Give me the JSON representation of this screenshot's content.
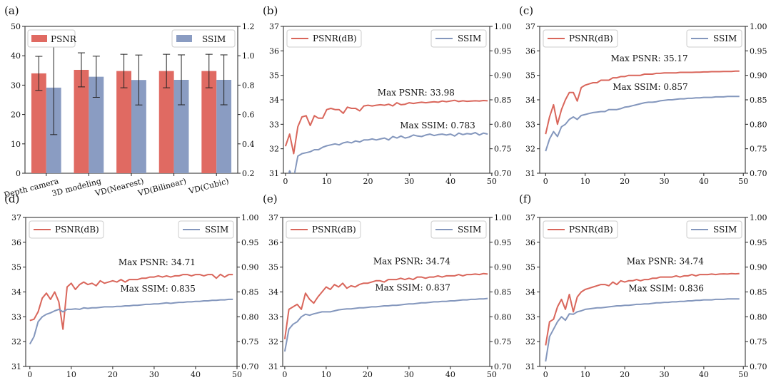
{
  "colors": {
    "psnr": "#d9665b",
    "ssim": "#8497bd",
    "bar_psnr": "#e06a62",
    "bar_ssim": "#8a9cc2"
  },
  "chart_data": [
    {
      "panel": "(a)",
      "type": "bar",
      "categories": [
        "Depth camera",
        "3D modeling",
        "VD(Nearest)",
        "VD(Bilinear)",
        "VD(Cubic)"
      ],
      "series": [
        {
          "name": "PSNR",
          "axis": "left",
          "values": [
            34.0,
            35.2,
            34.8,
            34.8,
            34.8
          ],
          "error": [
            5.8,
            5.8,
            5.7,
            5.7,
            5.7
          ]
        },
        {
          "name": "SSIM",
          "axis": "right",
          "values": [
            0.783,
            0.857,
            0.835,
            0.836,
            0.836
          ],
          "error": [
            0.32,
            0.14,
            0.17,
            0.17,
            0.17
          ]
        }
      ],
      "ylim_left": [
        0,
        50
      ],
      "yticks_left": [
        "0",
        "10",
        "20",
        "30",
        "40",
        "50"
      ],
      "ylim_right": [
        0.2,
        1.2
      ],
      "yticks_right": [
        "0.2",
        "0.4",
        "0.6",
        "0.8",
        "1.0",
        "1.2"
      ],
      "legend": [
        "top-left",
        "top-right"
      ]
    },
    {
      "panel": "(b)",
      "type": "line",
      "x_range": [
        0,
        49
      ],
      "xlim": [
        -0.5,
        49.5
      ],
      "xticks": [
        "0",
        "10",
        "20",
        "30",
        "40",
        "50"
      ],
      "ylim_left": [
        31,
        37
      ],
      "yticks_left": [
        "31",
        "32",
        "33",
        "34",
        "35",
        "36",
        "37"
      ],
      "ylim_right": [
        0.7,
        1.0
      ],
      "yticks_right": [
        "0.70",
        "0.75",
        "0.80",
        "0.85",
        "0.90",
        "0.95",
        "1.00"
      ],
      "series": [
        {
          "name": "PSNR(dB)",
          "axis": "left",
          "values": [
            32.1,
            32.6,
            31.8,
            32.9,
            33.3,
            33.35,
            32.95,
            33.35,
            33.25,
            33.25,
            33.6,
            33.65,
            33.6,
            33.6,
            33.45,
            33.7,
            33.65,
            33.65,
            33.55,
            33.75,
            33.78,
            33.75,
            33.78,
            33.8,
            33.78,
            33.82,
            33.75,
            33.88,
            33.8,
            33.82,
            33.88,
            33.85,
            33.88,
            33.9,
            33.88,
            33.9,
            33.92,
            33.9,
            33.95,
            33.92,
            33.95,
            33.98,
            33.93,
            33.96,
            33.94,
            33.95,
            33.96,
            33.95,
            33.97,
            33.96
          ]
        },
        {
          "name": "SSIM",
          "axis": "right",
          "values": [
            0.68,
            0.705,
            0.69,
            0.735,
            0.74,
            0.742,
            0.744,
            0.748,
            0.748,
            0.753,
            0.756,
            0.758,
            0.76,
            0.758,
            0.762,
            0.764,
            0.762,
            0.766,
            0.764,
            0.768,
            0.768,
            0.77,
            0.768,
            0.77,
            0.772,
            0.768,
            0.775,
            0.772,
            0.776,
            0.772,
            0.774,
            0.778,
            0.776,
            0.775,
            0.778,
            0.78,
            0.777,
            0.779,
            0.78,
            0.778,
            0.78,
            0.776,
            0.782,
            0.779,
            0.781,
            0.78,
            0.783,
            0.778,
            0.782,
            0.78
          ]
        }
      ],
      "annotations": [
        {
          "text": "Max PSNR: 33.98",
          "axis": "left",
          "x": 41,
          "y": 34.0
        },
        {
          "text": "Max SSIM: 0.783",
          "axis": "right",
          "x": 46,
          "y": 0.783
        }
      ]
    },
    {
      "panel": "(c)",
      "type": "line",
      "x_range": [
        0,
        49
      ],
      "xlim": [
        -1.5,
        50.5
      ],
      "xticks": [
        "0",
        "10",
        "20",
        "30",
        "40",
        "50"
      ],
      "ylim_left": [
        31,
        37
      ],
      "yticks_left": [
        "31",
        "32",
        "33",
        "34",
        "35",
        "36",
        "37"
      ],
      "ylim_right": [
        0.7,
        1.0
      ],
      "yticks_right": [
        "0.70",
        "0.75",
        "0.80",
        "0.85",
        "0.90",
        "0.95",
        "1.00"
      ],
      "series": [
        {
          "name": "PSNR(dB)",
          "axis": "left",
          "values": [
            32.6,
            33.3,
            33.8,
            33.0,
            33.6,
            34.0,
            34.3,
            34.3,
            33.95,
            34.5,
            34.6,
            34.65,
            34.7,
            34.7,
            34.8,
            34.8,
            34.8,
            34.9,
            34.9,
            34.95,
            34.95,
            35.0,
            35.0,
            35.0,
            35.0,
            35.05,
            35.05,
            35.05,
            35.08,
            35.08,
            35.1,
            35.1,
            35.1,
            35.1,
            35.12,
            35.12,
            35.12,
            35.12,
            35.13,
            35.13,
            35.14,
            35.14,
            35.15,
            35.15,
            35.15,
            35.16,
            35.16,
            35.16,
            35.17,
            35.17
          ]
        },
        {
          "name": "SSIM",
          "axis": "right",
          "values": [
            0.745,
            0.77,
            0.785,
            0.775,
            0.795,
            0.8,
            0.81,
            0.815,
            0.81,
            0.818,
            0.82,
            0.822,
            0.824,
            0.825,
            0.826,
            0.826,
            0.83,
            0.83,
            0.83,
            0.832,
            0.835,
            0.836,
            0.838,
            0.84,
            0.842,
            0.844,
            0.845,
            0.845,
            0.846,
            0.848,
            0.849,
            0.85,
            0.85,
            0.851,
            0.852,
            0.852,
            0.853,
            0.853,
            0.854,
            0.854,
            0.855,
            0.855,
            0.855,
            0.856,
            0.856,
            0.856,
            0.857,
            0.857,
            0.857,
            0.857
          ]
        }
      ],
      "annotations": [
        {
          "text": "Max PSNR: 35.17",
          "axis": "left",
          "x": 36,
          "y": 35.4
        },
        {
          "text": "Max SSIM: 0.857",
          "axis": "right",
          "x": 36,
          "y": 0.862
        }
      ]
    },
    {
      "panel": "(d)",
      "type": "line",
      "x_range": [
        0,
        49
      ],
      "xlim": [
        -1,
        50
      ],
      "xticks": [
        "0",
        "10",
        "20",
        "30",
        "40",
        "50"
      ],
      "ylim_left": [
        31,
        37
      ],
      "yticks_left": [
        "31",
        "32",
        "33",
        "34",
        "35",
        "36",
        "37"
      ],
      "ylim_right": [
        0.7,
        1.0
      ],
      "yticks_right": [
        "0.70",
        "0.75",
        "0.80",
        "0.85",
        "0.90",
        "0.95",
        "1.00"
      ],
      "series": [
        {
          "name": "PSNR(dB)",
          "axis": "left",
          "values": [
            32.85,
            32.9,
            33.2,
            33.75,
            33.95,
            33.7,
            34.0,
            33.6,
            32.5,
            34.2,
            34.35,
            34.1,
            34.3,
            34.4,
            34.3,
            34.35,
            34.25,
            34.45,
            34.35,
            34.4,
            34.45,
            34.4,
            34.5,
            34.4,
            34.5,
            34.5,
            34.5,
            34.55,
            34.55,
            34.6,
            34.6,
            34.65,
            34.6,
            34.65,
            34.6,
            34.65,
            34.65,
            34.7,
            34.7,
            34.65,
            34.7,
            34.7,
            34.65,
            34.7,
            34.7,
            34.55,
            34.71,
            34.6,
            34.7,
            34.7
          ]
        },
        {
          "name": "SSIM",
          "axis": "right",
          "values": [
            0.745,
            0.76,
            0.79,
            0.8,
            0.805,
            0.808,
            0.812,
            0.815,
            0.81,
            0.815,
            0.815,
            0.816,
            0.815,
            0.818,
            0.817,
            0.818,
            0.818,
            0.819,
            0.82,
            0.82,
            0.82,
            0.821,
            0.821,
            0.822,
            0.822,
            0.823,
            0.823,
            0.824,
            0.825,
            0.825,
            0.826,
            0.826,
            0.827,
            0.828,
            0.827,
            0.828,
            0.829,
            0.829,
            0.83,
            0.83,
            0.831,
            0.831,
            0.832,
            0.832,
            0.833,
            0.833,
            0.834,
            0.834,
            0.835,
            0.835
          ]
        }
      ],
      "annotations": [
        {
          "text": "Max PSNR: 34.71",
          "axis": "left",
          "x": 40,
          "y": 34.9
        },
        {
          "text": "Max SSIM: 0.835",
          "axis": "right",
          "x": 40,
          "y": 0.842
        }
      ]
    },
    {
      "panel": "(e)",
      "type": "line",
      "x_range": [
        0,
        49
      ],
      "xlim": [
        -0.5,
        49.5
      ],
      "xticks": [
        "0",
        "10",
        "20",
        "30",
        "40",
        "50"
      ],
      "ylim_left": [
        31,
        37
      ],
      "yticks_left": [
        "31",
        "32",
        "33",
        "34",
        "35",
        "36",
        "37"
      ],
      "ylim_right": [
        0.7,
        1.0
      ],
      "yticks_right": [
        "0.70",
        "0.75",
        "0.80",
        "0.85",
        "0.90",
        "0.95",
        "1.00"
      ],
      "series": [
        {
          "name": "PSNR(dB)",
          "axis": "left",
          "values": [
            32.1,
            33.3,
            33.4,
            33.5,
            33.3,
            33.95,
            33.7,
            33.55,
            33.8,
            34.0,
            34.2,
            34.1,
            34.3,
            34.2,
            34.35,
            34.15,
            34.25,
            34.2,
            34.3,
            34.35,
            34.35,
            34.4,
            34.45,
            34.45,
            34.4,
            34.5,
            34.5,
            34.5,
            34.55,
            34.5,
            34.55,
            34.5,
            34.6,
            34.6,
            34.55,
            34.6,
            34.6,
            34.65,
            34.6,
            34.65,
            34.65,
            34.65,
            34.7,
            34.65,
            34.7,
            34.7,
            34.72,
            34.7,
            34.74,
            34.72
          ]
        },
        {
          "name": "SSIM",
          "axis": "right",
          "values": [
            0.73,
            0.775,
            0.785,
            0.79,
            0.8,
            0.805,
            0.803,
            0.806,
            0.808,
            0.81,
            0.81,
            0.81,
            0.812,
            0.814,
            0.815,
            0.816,
            0.816,
            0.817,
            0.818,
            0.818,
            0.819,
            0.82,
            0.82,
            0.821,
            0.822,
            0.822,
            0.823,
            0.823,
            0.824,
            0.825,
            0.826,
            0.826,
            0.827,
            0.828,
            0.828,
            0.829,
            0.83,
            0.83,
            0.831,
            0.831,
            0.832,
            0.832,
            0.833,
            0.834,
            0.834,
            0.835,
            0.835,
            0.836,
            0.836,
            0.837
          ]
        }
      ],
      "annotations": [
        {
          "text": "Max PSNR: 34.74",
          "axis": "left",
          "x": 40,
          "y": 34.95
        },
        {
          "text": "Max SSIM: 0.837",
          "axis": "right",
          "x": 40,
          "y": 0.844
        }
      ]
    },
    {
      "panel": "(f)",
      "type": "line",
      "x_range": [
        0,
        49
      ],
      "xlim": [
        -1.5,
        50.5
      ],
      "xticks": [
        "0",
        "10",
        "20",
        "30",
        "40",
        "50"
      ],
      "ylim_left": [
        31,
        37
      ],
      "yticks_left": [
        "31",
        "32",
        "33",
        "34",
        "35",
        "36",
        "37"
      ],
      "ylim_right": [
        0.7,
        1.0
      ],
      "yticks_right": [
        "0.70",
        "0.75",
        "0.80",
        "0.85",
        "0.90",
        "0.95",
        "1.00"
      ],
      "series": [
        {
          "name": "PSNR(dB)",
          "axis": "left",
          "values": [
            31.85,
            32.8,
            32.9,
            33.4,
            33.7,
            33.3,
            33.9,
            33.2,
            33.8,
            34.0,
            34.1,
            34.15,
            34.2,
            34.25,
            34.3,
            34.3,
            34.25,
            34.4,
            34.3,
            34.45,
            34.4,
            34.45,
            34.45,
            34.5,
            34.45,
            34.5,
            34.5,
            34.55,
            34.55,
            34.6,
            34.6,
            34.6,
            34.6,
            34.65,
            34.6,
            34.65,
            34.65,
            34.7,
            34.65,
            34.7,
            34.7,
            34.7,
            34.72,
            34.7,
            34.72,
            34.73,
            34.72,
            34.74,
            34.73,
            34.74
          ]
        },
        {
          "name": "SSIM",
          "axis": "right",
          "values": [
            0.71,
            0.76,
            0.775,
            0.79,
            0.8,
            0.793,
            0.806,
            0.805,
            0.81,
            0.812,
            0.815,
            0.816,
            0.817,
            0.818,
            0.818,
            0.819,
            0.82,
            0.821,
            0.822,
            0.822,
            0.823,
            0.823,
            0.824,
            0.825,
            0.825,
            0.826,
            0.826,
            0.827,
            0.828,
            0.828,
            0.829,
            0.829,
            0.83,
            0.83,
            0.831,
            0.831,
            0.832,
            0.832,
            0.833,
            0.833,
            0.834,
            0.834,
            0.834,
            0.835,
            0.835,
            0.835,
            0.836,
            0.836,
            0.836,
            0.836
          ]
        }
      ],
      "annotations": [
        {
          "text": "Max PSNR: 34.74",
          "axis": "left",
          "x": 40,
          "y": 34.95
        },
        {
          "text": "Max SSIM: 0.836",
          "axis": "right",
          "x": 40,
          "y": 0.843
        }
      ]
    }
  ]
}
